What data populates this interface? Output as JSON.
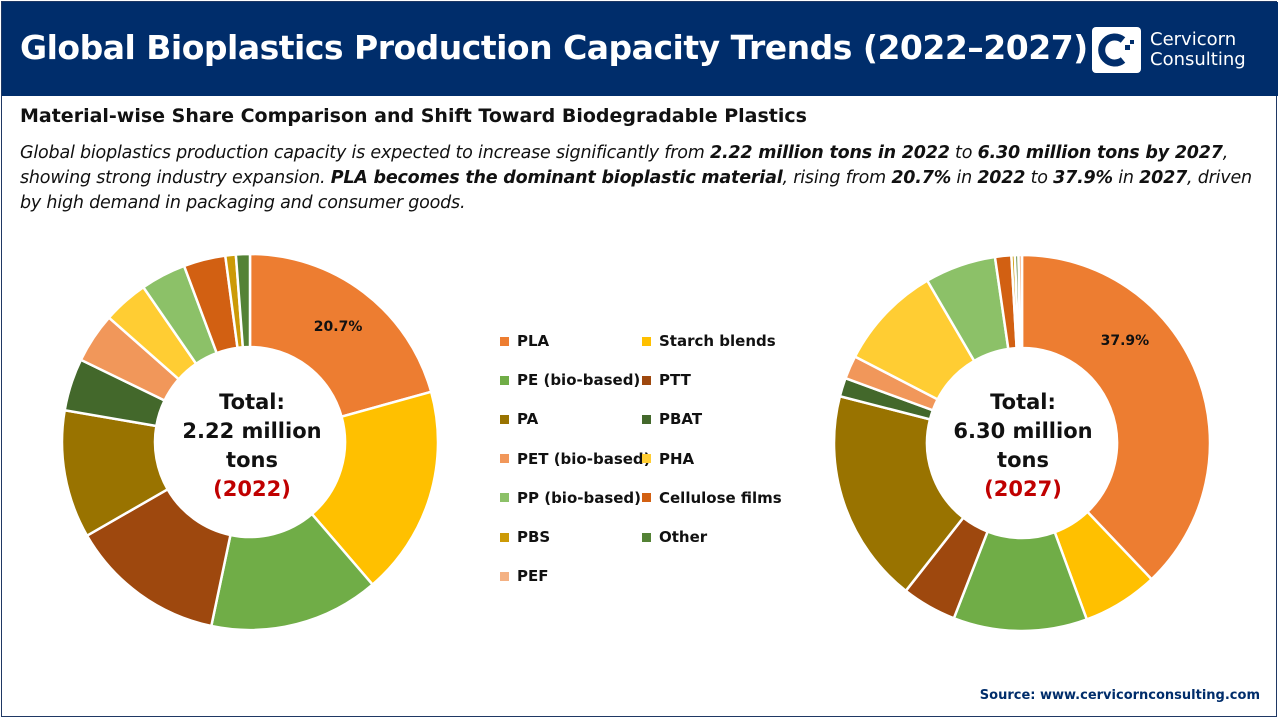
{
  "header": {
    "title": "Global Bioplastics Production Capacity Trends (2022–2027)",
    "brand_line1": "Cervicorn",
    "brand_line2": "Consulting"
  },
  "subtitle": "Material-wise Share Comparison and Shift Toward Biodegradable Plastics",
  "description": [
    {
      "t": "Global bioplastics production capacity is expected to increase significantly from ",
      "b": false
    },
    {
      "t": "2.22 million tons in 2022",
      "b": true
    },
    {
      "t": " to ",
      "b": false
    },
    {
      "t": "6.30 million tons by 2027",
      "b": true
    },
    {
      "t": ", showing strong industry expansion. ",
      "b": false
    },
    {
      "t": "PLA becomes the dominant bioplastic material",
      "b": true
    },
    {
      "t": ", rising from ",
      "b": false
    },
    {
      "t": "20.7%",
      "b": true
    },
    {
      "t": " in ",
      "b": false
    },
    {
      "t": "2022",
      "b": true
    },
    {
      "t": " to ",
      "b": false
    },
    {
      "t": "37.9%",
      "b": true
    },
    {
      "t": " in ",
      "b": false
    },
    {
      "t": "2027",
      "b": true
    },
    {
      "t": ", driven by high demand in packaging and consumer goods.",
      "b": false
    }
  ],
  "chart_data": [
    {
      "type": "pie",
      "donut": true,
      "center_label": {
        "line1": "Total:",
        "line2": "2.22 million",
        "line3": "tons",
        "year": "(2022)"
      },
      "categories": [
        "PLA",
        "Starch blends",
        "PE (bio-based)",
        "PTT",
        "PA",
        "PBAT",
        "PET (bio-based)",
        "PHA",
        "PP (bio-based)",
        "Cellulose films",
        "PBS",
        "Other",
        "PEF"
      ],
      "values": [
        20.7,
        18.0,
        14.6,
        13.4,
        11.0,
        4.5,
        4.3,
        3.9,
        3.9,
        3.6,
        0.9,
        1.2,
        0.0
      ],
      "data_labels": {
        "PLA": "20.7%"
      }
    },
    {
      "type": "pie",
      "donut": true,
      "center_label": {
        "line1": "Total:",
        "line2": "6.30 million",
        "line3": "tons",
        "year": "(2027)"
      },
      "categories": [
        "PLA",
        "Starch blends",
        "PE (bio-based)",
        "PTT",
        "PA",
        "PBAT",
        "PET (bio-based)",
        "PHA",
        "PP (bio-based)",
        "Cellulose films",
        "PBS",
        "Other",
        "PEF"
      ],
      "values": [
        37.9,
        6.5,
        11.5,
        4.7,
        18.4,
        1.6,
        2.0,
        9.0,
        6.1,
        1.4,
        0.3,
        0.3,
        0.3
      ],
      "data_labels": {
        "PLA": "37.9%"
      }
    }
  ],
  "legend": [
    {
      "label": "PLA",
      "color": "#ED7D31"
    },
    {
      "label": "Starch blends",
      "color": "#FFC000"
    },
    {
      "label": "PE (bio-based)",
      "color": "#70AD47"
    },
    {
      "label": "PTT",
      "color": "#9E480E"
    },
    {
      "label": "PA",
      "color": "#997300"
    },
    {
      "label": "PBAT",
      "color": "#43682B"
    },
    {
      "label": "PET (bio-based)",
      "color": "#F1975A"
    },
    {
      "label": "PHA",
      "color": "#FFCD33"
    },
    {
      "label": "PP (bio-based)",
      "color": "#8CC168"
    },
    {
      "label": "Cellulose films",
      "color": "#D26012"
    },
    {
      "label": "PBS",
      "color": "#CC9A06"
    },
    {
      "label": "Other",
      "color": "#548235"
    },
    {
      "label": "PEF",
      "color": "#F4B183"
    }
  ],
  "source": "Source: www.cervicornconsulting.com"
}
